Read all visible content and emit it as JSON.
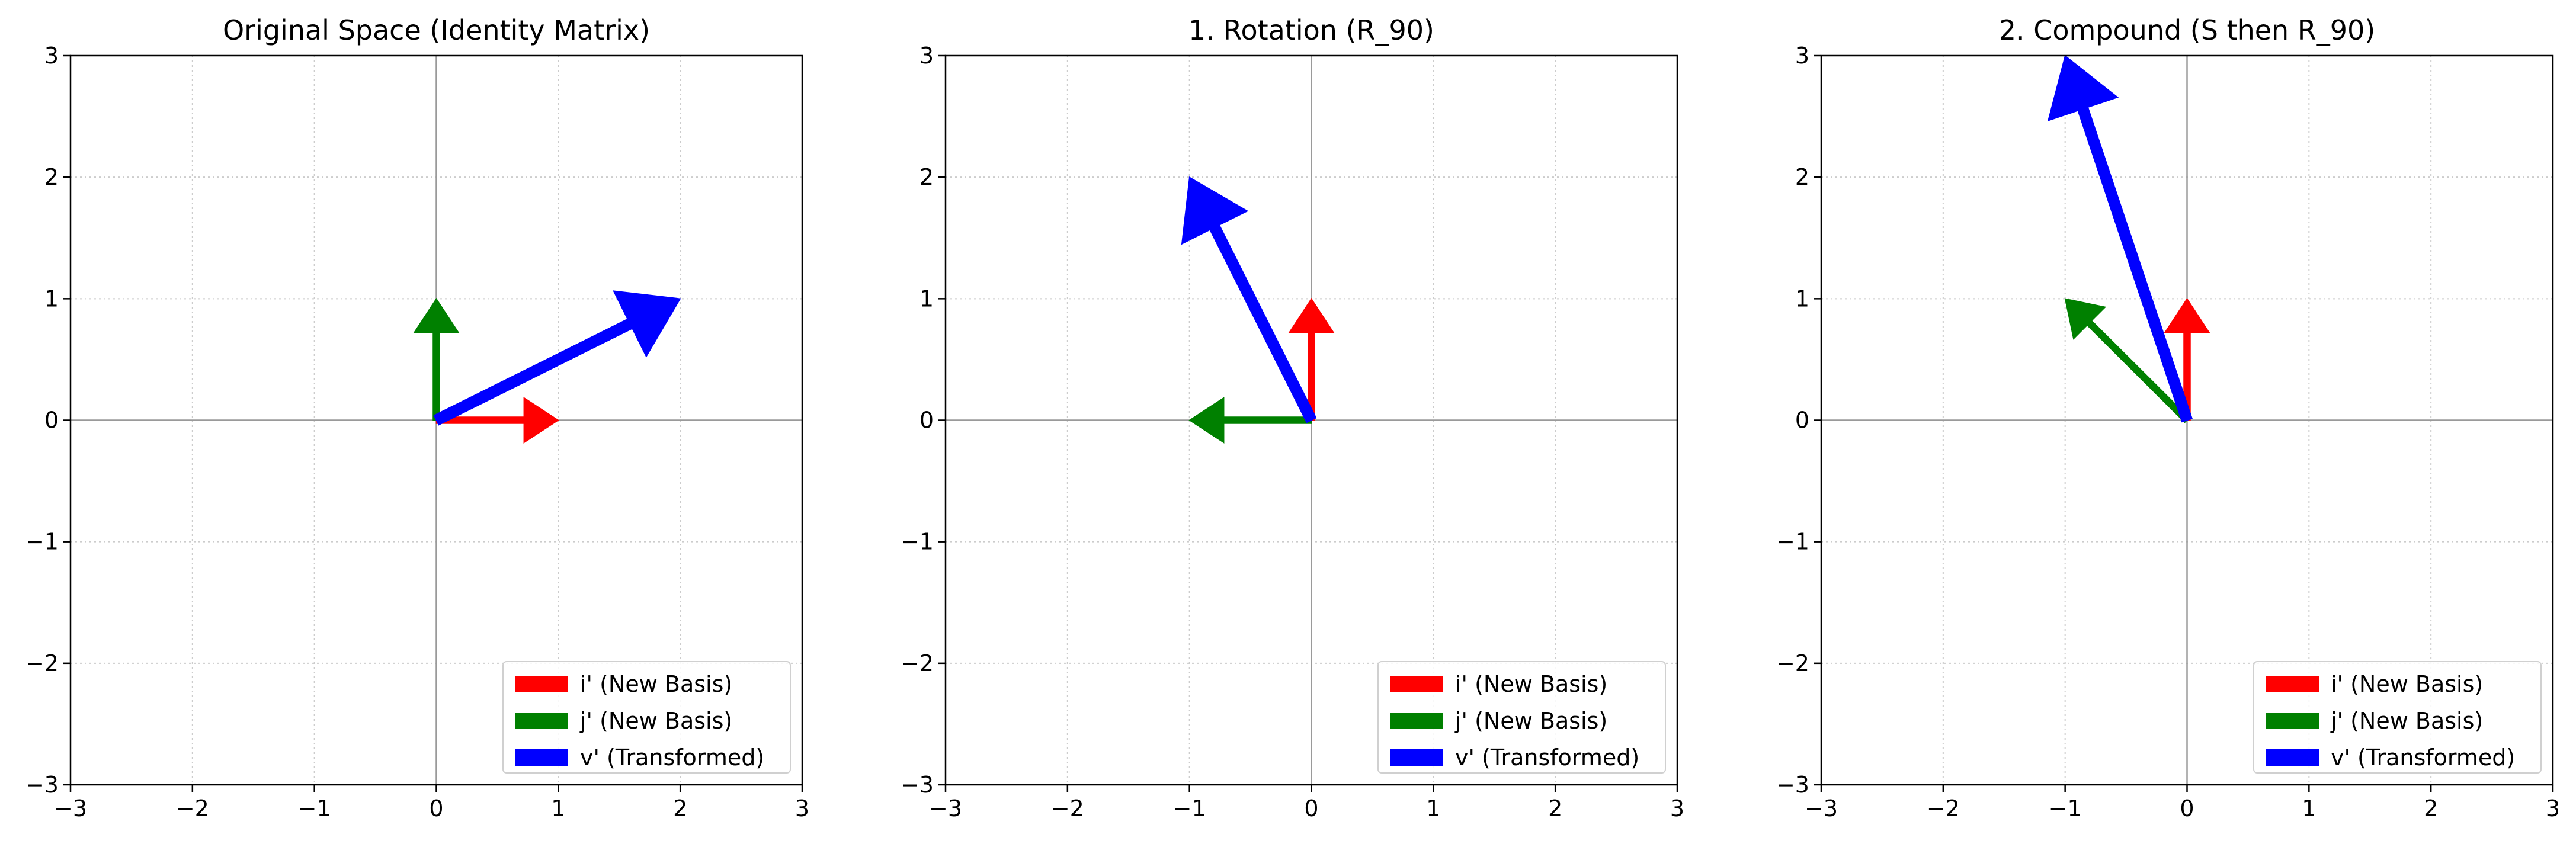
{
  "chart_data": [
    {
      "type": "vector",
      "title": "Original Space (Identity Matrix)",
      "xlim": [
        -3,
        3
      ],
      "ylim": [
        -3,
        3
      ],
      "xticks": [
        -3,
        -2,
        -1,
        0,
        1,
        2,
        3
      ],
      "yticks": [
        -3,
        -2,
        -1,
        0,
        1,
        2,
        3
      ],
      "grid": true,
      "legend_position": "lower-right",
      "series": [
        {
          "name": "i' (New Basis)",
          "color": "#ff0000",
          "x": 1,
          "y": 0,
          "weight": "thin"
        },
        {
          "name": "j' (New Basis)",
          "color": "#008000",
          "x": 0,
          "y": 1,
          "weight": "thin"
        },
        {
          "name": "v' (Transformed)",
          "color": "#0000ff",
          "x": 2,
          "y": 1,
          "weight": "thick"
        }
      ]
    },
    {
      "type": "vector",
      "title": "1. Rotation (R_90)",
      "xlim": [
        -3,
        3
      ],
      "ylim": [
        -3,
        3
      ],
      "xticks": [
        -3,
        -2,
        -1,
        0,
        1,
        2,
        3
      ],
      "yticks": [
        -3,
        -2,
        -1,
        0,
        1,
        2,
        3
      ],
      "grid": true,
      "legend_position": "lower-right",
      "series": [
        {
          "name": "i' (New Basis)",
          "color": "#ff0000",
          "x": 0,
          "y": 1,
          "weight": "thin"
        },
        {
          "name": "j' (New Basis)",
          "color": "#008000",
          "x": -1,
          "y": 0,
          "weight": "thin"
        },
        {
          "name": "v' (Transformed)",
          "color": "#0000ff",
          "x": -1,
          "y": 2,
          "weight": "thick"
        }
      ]
    },
    {
      "type": "vector",
      "title": "2. Compound (S then R_90)",
      "xlim": [
        -3,
        3
      ],
      "ylim": [
        -3,
        3
      ],
      "xticks": [
        -3,
        -2,
        -1,
        0,
        1,
        2,
        3
      ],
      "yticks": [
        -3,
        -2,
        -1,
        0,
        1,
        2,
        3
      ],
      "grid": true,
      "legend_position": "lower-right",
      "series": [
        {
          "name": "i' (New Basis)",
          "color": "#ff0000",
          "x": 0,
          "y": 1,
          "weight": "thin"
        },
        {
          "name": "j' (New Basis)",
          "color": "#008000",
          "x": -1,
          "y": 1,
          "weight": "thin"
        },
        {
          "name": "v' (Transformed)",
          "color": "#0000ff",
          "x": -1,
          "y": 3,
          "weight": "thick"
        }
      ]
    }
  ]
}
